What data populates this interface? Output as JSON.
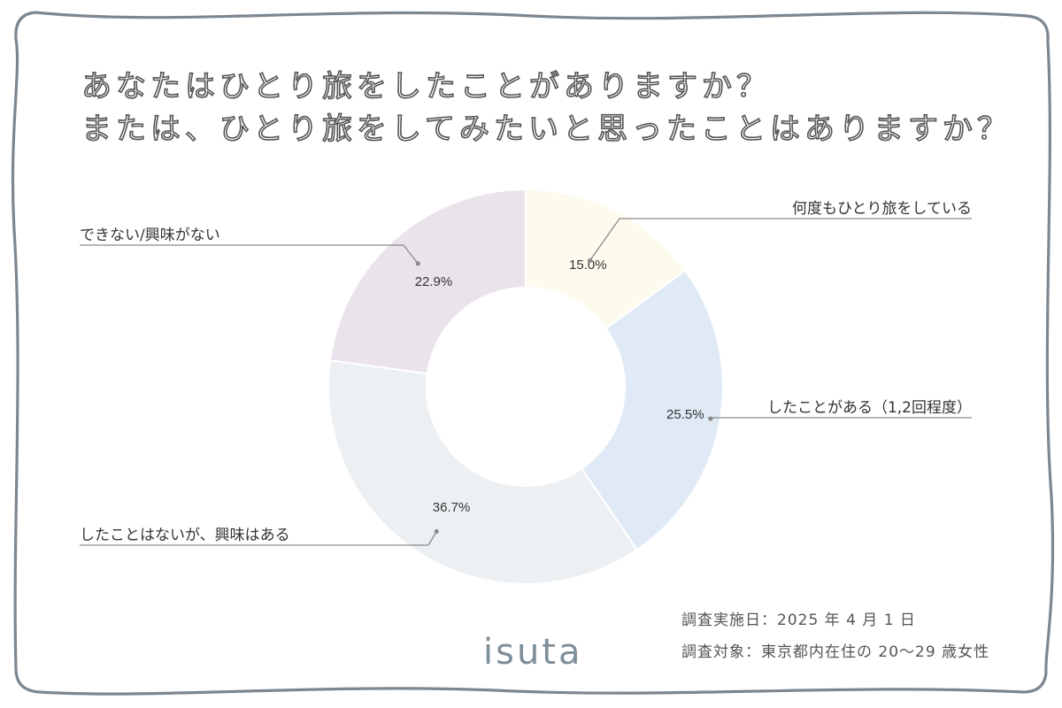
{
  "title": {
    "line1": "あなたはひとり旅をしたことがありますか？",
    "line2": "または、ひとり旅をしてみたいと思ったことはありますか？"
  },
  "chart_data": {
    "type": "pie",
    "donut": true,
    "categories": [
      "何度もひとり旅をしている",
      "したことがある（1,2回程度）",
      "したことはないが、興味はある",
      "できない/興味がない"
    ],
    "values": [
      15.0,
      25.5,
      36.7,
      22.9
    ],
    "value_labels": [
      "15.0%",
      "25.5%",
      "36.7%",
      "22.9%"
    ],
    "colors": [
      "#fdfaee",
      "#e0eaf6",
      "#edf0f2",
      "#ebe3ec"
    ],
    "start": "12 o'clock, clockwise"
  },
  "notes": {
    "date": "調査実施日：2025 年 4 月 1 日",
    "target": "調査対象：東京都内在住の 20〜29 歳女性"
  },
  "logo": "isuta",
  "colors": {
    "frame": "#7d8790",
    "title_outline": "#555555",
    "leader": "#8a8a8a",
    "logo": "#7f8f9a"
  }
}
